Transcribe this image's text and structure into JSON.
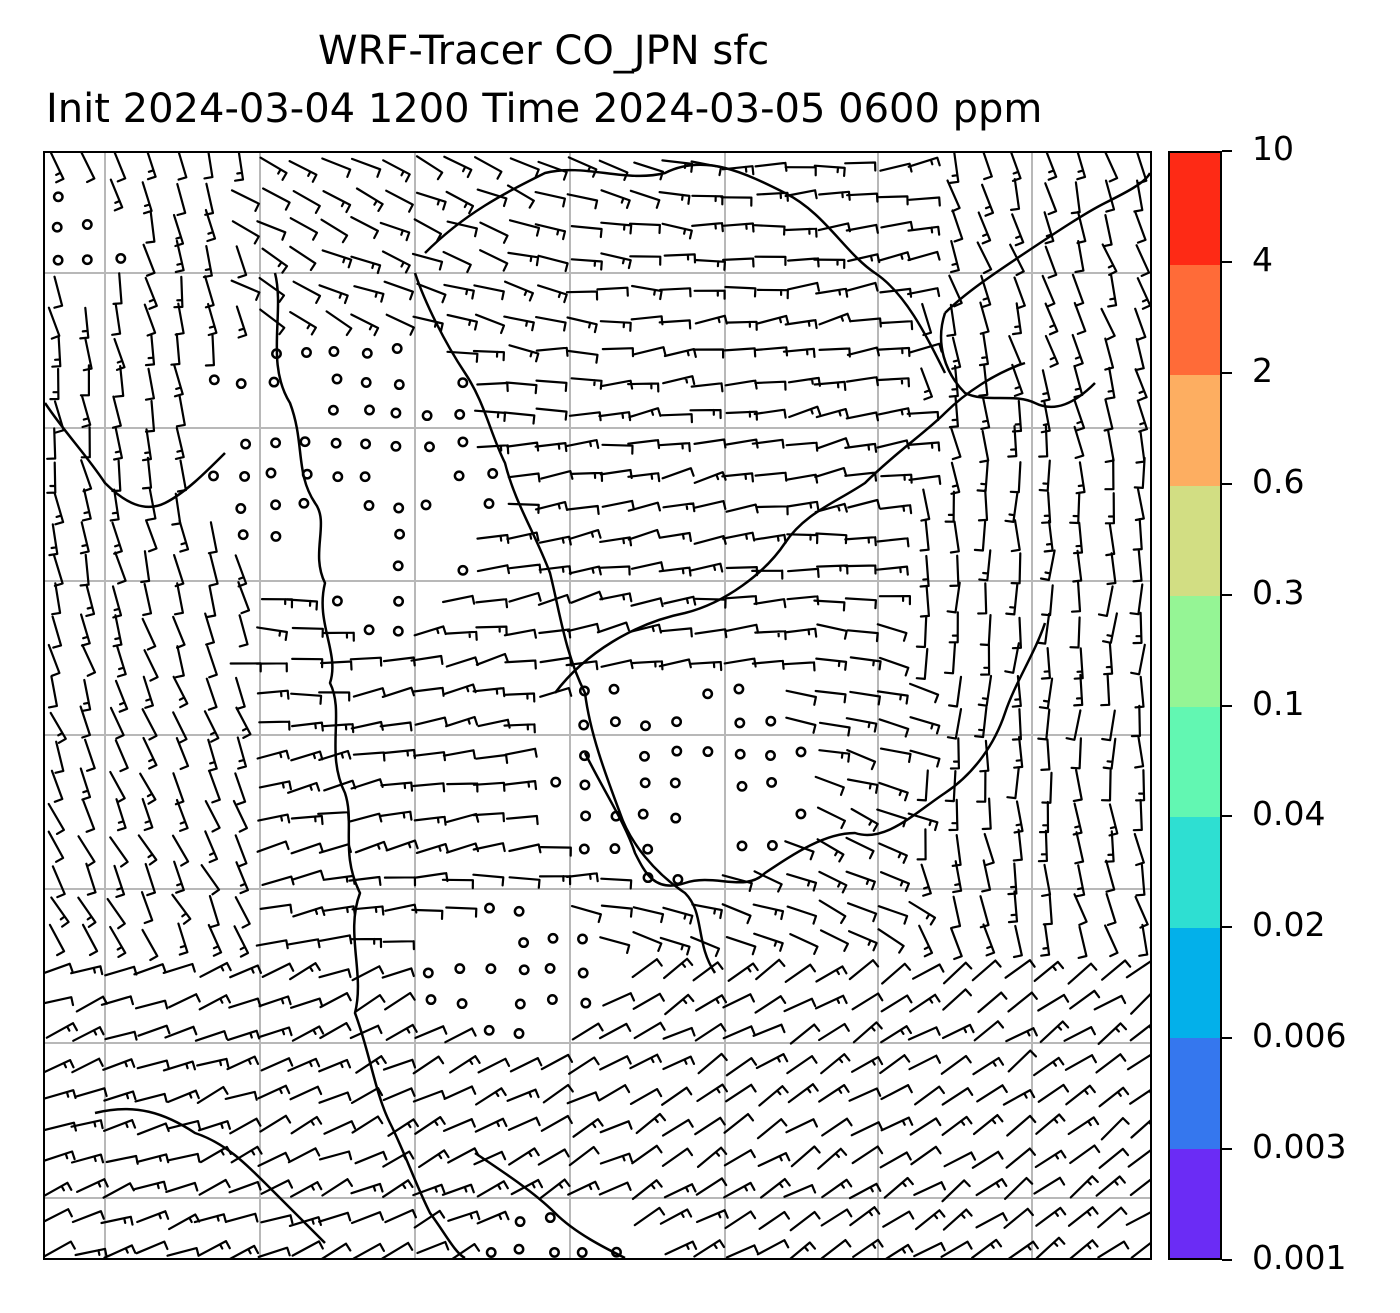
{
  "title": {
    "line1": "WRF-Tracer CO_JPN sfc",
    "line2": "Init 2024-03-04 1200 Time 2024-03-05 0600 ppm"
  },
  "colorbar": {
    "levels": [
      "0.001",
      "0.003",
      "0.006",
      "0.02",
      "0.04",
      "0.1",
      "0.3",
      "0.6",
      "2",
      "4",
      "10"
    ],
    "colors": [
      "#6b2cf5",
      "#3577ee",
      "#03b0ea",
      "#2edfd2",
      "#62f7b2",
      "#95f595",
      "#d2de83",
      "#fdae61",
      "#ff6b38",
      "#fe2a15"
    ]
  },
  "map": {
    "gridlines": true,
    "coastline_color": "#000000",
    "barb_color": "#000000"
  }
}
